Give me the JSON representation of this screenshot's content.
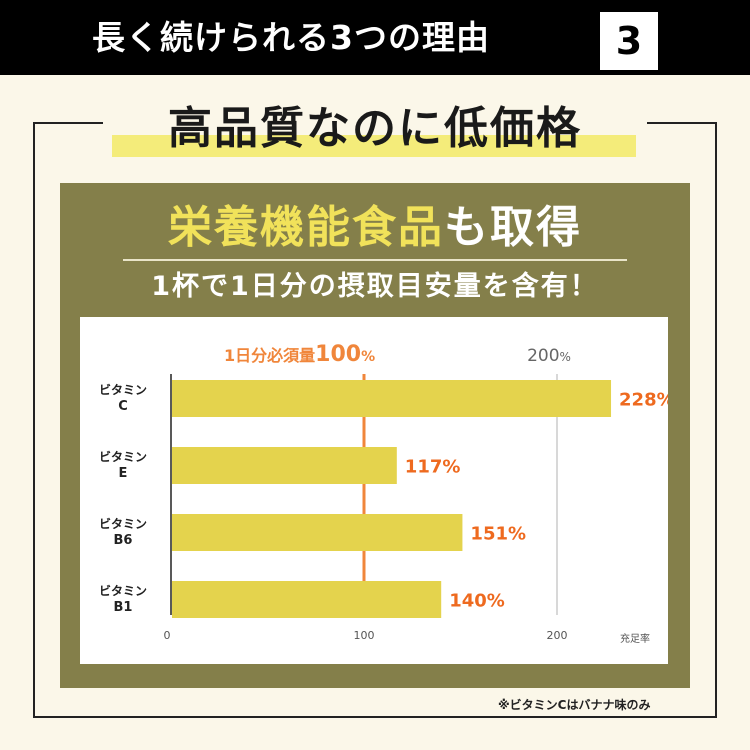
{
  "header": {
    "title": "長く続けられる3つの理由",
    "number": "3"
  },
  "heading": "高品質なのに低価格",
  "subheading": {
    "highlight": "栄養機能食品",
    "rest": "も取得"
  },
  "subline": "1杯で1日分の摂取目安量を含有！",
  "chart_data": {
    "type": "bar",
    "orientation": "horizontal",
    "categories": [
      [
        "ビタミン",
        "C"
      ],
      [
        "ビタミン",
        "E"
      ],
      [
        "ビタミン",
        "B6"
      ],
      [
        "ビタミン",
        "B1"
      ]
    ],
    "values": [
      228,
      117,
      151,
      140
    ],
    "value_labels": [
      "228%",
      "117%",
      "151%",
      "140%"
    ],
    "xlim": [
      0,
      240
    ],
    "xticks": [
      0,
      100,
      200
    ],
    "xlabel": "充足率",
    "reference_lines": [
      {
        "value": 100,
        "label": "1日分必須量",
        "label_value": "100",
        "label_unit": "%",
        "color": "#f0863b"
      },
      {
        "value": 200,
        "label_value": "200",
        "label_unit": "%",
        "color": "#cccccc"
      }
    ],
    "colors": {
      "bar": "#e4d34d",
      "value_label": "#ee6a1f",
      "ref100": "#f0863b",
      "axis": "#222222"
    }
  },
  "footnote": "※ビタミンCはバナナ味のみ"
}
